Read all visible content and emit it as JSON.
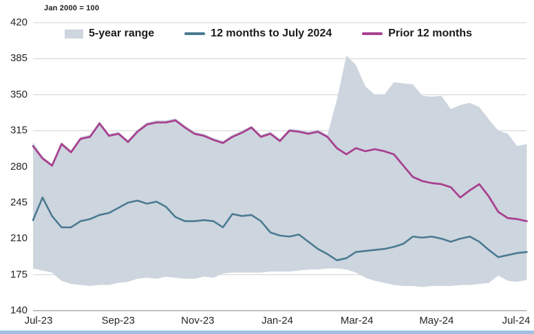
{
  "note": "Jan 2000 = 100",
  "legend": {
    "items": [
      {
        "label": "5-year range",
        "type": "area",
        "color": "#cdd5de"
      },
      {
        "label": "12 months to July 2024",
        "type": "line",
        "color": "#4a7a91"
      },
      {
        "label": "Prior 12 months",
        "type": "line",
        "color": "#a84190"
      }
    ]
  },
  "colors": {
    "band": "#cdd5de",
    "line_current": "#4a7a91",
    "line_prior": "#a84190",
    "gridline": "#d9d9d9",
    "baseline": "#9c9c9c",
    "accent_bar": "#9fc0e0",
    "text": "#262626"
  },
  "chart_data": {
    "type": "line",
    "title": "Jan 2000 = 100",
    "xlabel": "",
    "ylabel": "",
    "ylim": [
      140,
      420
    ],
    "yticks": [
      140,
      175,
      210,
      245,
      280,
      315,
      350,
      385,
      420
    ],
    "x_tick_labels": [
      "Jul-23",
      "Sep-23",
      "Nov-23",
      "Jan-24",
      "Mar-24",
      "May-24",
      "Jul-24"
    ],
    "x_range_months": [
      "Jul-23",
      "Jul-24"
    ],
    "grid": "horizontal",
    "legend_position": "top",
    "series": [
      {
        "name": "5-year range",
        "type": "band",
        "color": "#cdd5de",
        "top": [
          304,
          290,
          283,
          304,
          296,
          309,
          311,
          324,
          312,
          314,
          306,
          316,
          323,
          325,
          325,
          327,
          320,
          314,
          312,
          308,
          305,
          311,
          315,
          320,
          311,
          314,
          307,
          317,
          316,
          314,
          316,
          311,
          345,
          388,
          379,
          358,
          350,
          350,
          362,
          361,
          360,
          349,
          348,
          349,
          336,
          340,
          342,
          338,
          326,
          315,
          312,
          300,
          302
        ],
        "bottom": [
          181,
          179,
          177,
          169,
          166,
          165,
          164,
          165,
          165,
          167,
          168,
          171,
          172,
          171,
          173,
          172,
          171,
          171,
          173,
          172,
          176,
          177,
          177,
          177,
          177,
          178,
          178,
          178,
          179,
          180,
          180,
          181,
          181,
          180,
          177,
          172,
          169,
          167,
          165,
          164,
          164,
          163,
          164,
          164,
          164,
          165,
          165,
          166,
          167,
          174,
          169,
          168,
          170
        ]
      },
      {
        "name": "12 months to July 2024",
        "type": "line",
        "color": "#4a7a91",
        "values": [
          228,
          250,
          232,
          221,
          221,
          227,
          229,
          233,
          235,
          240,
          245,
          247,
          244,
          246,
          241,
          231,
          227,
          227,
          228,
          227,
          221,
          234,
          232,
          233,
          227,
          216,
          213,
          212,
          214,
          207,
          200,
          195,
          189,
          191,
          197,
          198,
          199,
          200,
          202,
          205,
          212,
          211,
          212,
          210,
          207,
          210,
          212,
          207,
          199,
          192,
          194,
          196,
          197
        ]
      },
      {
        "name": "Prior 12 months",
        "type": "line",
        "color": "#a84190",
        "values": [
          300,
          288,
          281,
          302,
          294,
          307,
          309,
          322,
          310,
          312,
          304,
          314,
          321,
          323,
          323,
          325,
          318,
          312,
          310,
          306,
          303,
          309,
          313,
          318,
          309,
          312,
          305,
          315,
          314,
          312,
          314,
          309,
          298,
          292,
          298,
          295,
          297,
          295,
          292,
          281,
          270,
          266,
          264,
          263,
          260,
          250,
          257,
          263,
          251,
          236,
          230,
          229,
          227
        ]
      }
    ]
  }
}
